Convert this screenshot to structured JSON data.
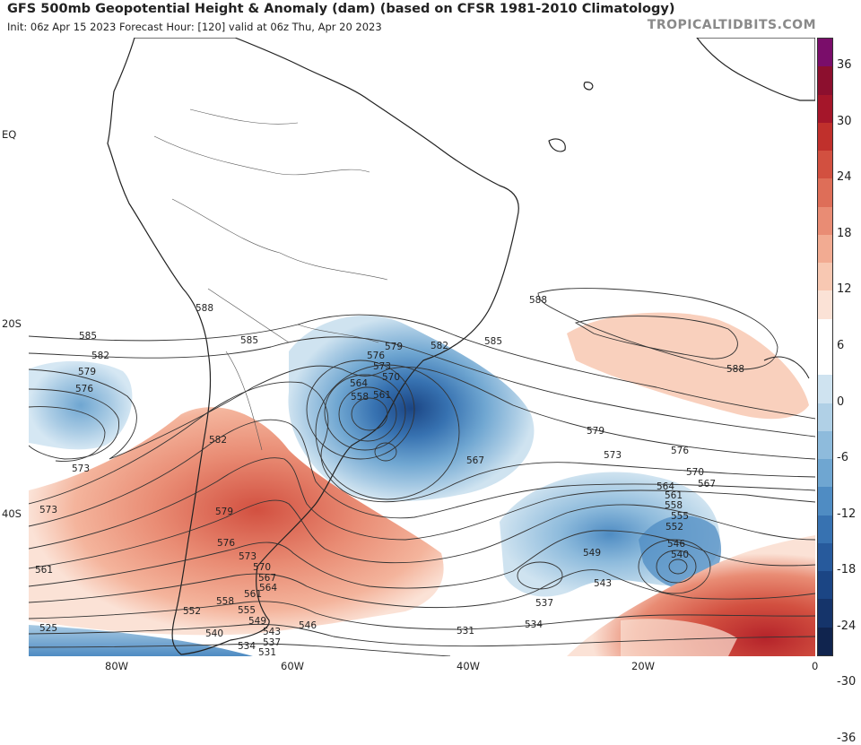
{
  "header": {
    "title": "GFS 500mb Geopotential Height & Anomaly (dam) (based on CFSR 1981-2010 Climatology)",
    "subtitle": "Init: 06z Apr 15 2023   Forecast Hour: [120]   valid at 06z Thu, Apr 20 2023",
    "credit": "TROPICALTIDBITS.COM"
  },
  "axes": {
    "lat_labels": [
      "EQ",
      "20S",
      "40S"
    ],
    "lon_labels": [
      "80W",
      "60W",
      "40W",
      "20W",
      "0"
    ]
  },
  "colorbar": {
    "labels": [
      "36",
      "30",
      "24",
      "18",
      "12",
      "6",
      "0",
      "-6",
      "-12",
      "-18",
      "-24",
      "-30",
      "-36"
    ],
    "colors": [
      "#7a0d6a",
      "#8c0f2e",
      "#a5162a",
      "#c0302c",
      "#d25040",
      "#de6e58",
      "#e98c74",
      "#f2ab92",
      "#f8c8b2",
      "#fbe2d6",
      "#ffffff",
      "#ffffff",
      "#cfe3f0",
      "#b0d0e6",
      "#8ebbdc",
      "#6fa6d1",
      "#4f8cc3",
      "#3772b1",
      "#275a9c",
      "#1b4584",
      "#15346a",
      "#10244e"
    ]
  },
  "contours": {
    "labels": [
      "585",
      "582",
      "579",
      "576",
      "573",
      "588",
      "588",
      "585",
      "582",
      "579",
      "576",
      "573",
      "570",
      "564",
      "561",
      "558",
      "567",
      "585",
      "579",
      "576",
      "573",
      "570",
      "567",
      "564",
      "561",
      "558",
      "555",
      "552",
      "549",
      "546",
      "543",
      "540",
      "537",
      "534",
      "531",
      "525",
      "582",
      "579",
      "576",
      "573",
      "570",
      "567",
      "564",
      "561",
      "558",
      "555",
      "552",
      "549",
      "546",
      "543",
      "540",
      "537",
      "534",
      "531",
      "573",
      "561",
      "588"
    ]
  }
}
